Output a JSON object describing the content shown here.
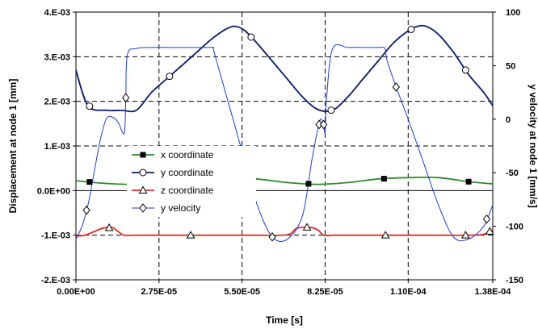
{
  "chart_data": {
    "type": "line",
    "xlabel": "Time [s]",
    "ylabel": "Displacement at node 1 [mm]",
    "y2label": "y velocity at node 1 [mm/s]",
    "xlim": [
      0,
      0.000138
    ],
    "ylim": [
      -0.002,
      0.004
    ],
    "y2lim": [
      -150,
      100
    ],
    "x_ticks": [
      0,
      2.75e-05,
      5.5e-05,
      8.25e-05,
      0.00011,
      0.000138
    ],
    "x_tick_labels": [
      "0.00E+00",
      "2.75E-05",
      "5.50E-05",
      "8.25E-05",
      "1.10E-04",
      "1.38E-04"
    ],
    "y_ticks": [
      -0.002,
      -0.001,
      0,
      0.001,
      0.002,
      0.003,
      0.004
    ],
    "y_tick_labels": [
      "-2.E-03",
      "-1.E-03",
      "0.0E+00",
      "1.E-03",
      "2.E-03",
      "3.E-03",
      "4.E-03"
    ],
    "y2_ticks": [
      -150,
      -100,
      -50,
      0,
      50,
      100
    ],
    "y2_tick_labels": [
      "-150",
      "-100",
      "-50",
      "0",
      "50",
      "100"
    ],
    "grid": "dashed vertical and horizontal at major ticks",
    "legend_position": "center-left",
    "series": [
      {
        "name": "x coordinate",
        "axis": "left",
        "color": "#2e8b2e",
        "marker": "square-filled",
        "x": [
          0,
          1e-05,
          2e-05,
          3e-05,
          4e-05,
          5e-05,
          6e-05,
          7e-05,
          8e-05,
          9e-05,
          0.0001,
          0.00011,
          0.00012,
          0.00013,
          0.000138
        ],
        "y": [
          0.00022,
          0.00016,
          0.00014,
          0.0002,
          0.00028,
          0.0003,
          0.00026,
          0.00018,
          0.00014,
          0.00018,
          0.00026,
          0.00029,
          0.00029,
          0.0002,
          0.00015
        ],
        "markers_x": [
          4.5e-06,
          5.2e-05,
          7.7e-05,
          0.000102,
          0.00013
        ]
      },
      {
        "name": "y coordinate",
        "axis": "left",
        "color": "#0a1a6e",
        "marker": "circle-open",
        "x": [
          0,
          4e-06,
          1e-05,
          1.5e-05,
          2e-05,
          2.5e-05,
          3e-05,
          3.5e-05,
          4e-05,
          4.5e-05,
          5e-05,
          5.3e-05,
          5.6e-05,
          6e-05,
          6.5e-05,
          7e-05,
          7.5e-05,
          8e-05,
          8.5e-05,
          9e-05,
          9.5e-05,
          0.0001,
          0.000105,
          0.00011,
          0.000113,
          0.000116,
          0.00012,
          0.000125,
          0.00013,
          0.000135,
          0.000138
        ],
        "y": [
          0.0027,
          0.0019,
          0.0018,
          0.0018,
          0.0018,
          0.0022,
          0.0025,
          0.0028,
          0.0031,
          0.0034,
          0.00363,
          0.00368,
          0.00358,
          0.0033,
          0.0029,
          0.0025,
          0.0021,
          0.00182,
          0.0018,
          0.0021,
          0.0025,
          0.0029,
          0.0033,
          0.00358,
          0.00368,
          0.00368,
          0.0035,
          0.0031,
          0.0026,
          0.0022,
          0.0019
        ],
        "markers_x": [
          4.5e-06,
          3.1e-05,
          5.8e-05,
          8.45e-05,
          0.000111,
          0.000129
        ]
      },
      {
        "name": "z coordinate",
        "axis": "left",
        "color": "#e32b2b",
        "marker": "triangle-open",
        "x": [
          0,
          3e-06,
          6e-06,
          9e-06,
          1.2e-05,
          1.4e-05,
          1.6e-05,
          2e-05,
          3e-05,
          4e-05,
          5e-05,
          6e-05,
          7e-05,
          7.3e-05,
          7.7e-05,
          8e-05,
          8.2e-05,
          8.5e-05,
          9e-05,
          0.0001,
          0.00011,
          0.00012,
          0.00013,
          0.000135,
          0.000138
        ],
        "y": [
          -0.00102,
          -0.001,
          -0.00092,
          -0.00084,
          -0.00083,
          -0.00092,
          -0.001,
          -0.001,
          -0.001,
          -0.001,
          -0.001,
          -0.001,
          -0.00099,
          -0.00085,
          -0.00082,
          -0.00088,
          -0.001,
          -0.001,
          -0.001,
          -0.001,
          -0.001,
          -0.001,
          -0.001,
          -0.00098,
          -0.00088
        ],
        "markers_x": [
          1.1e-05,
          3.8e-05,
          7.65e-05,
          0.0001025,
          0.000129,
          0.000137
        ]
      },
      {
        "name": "y velocity",
        "axis": "right",
        "color": "#1a3fd6",
        "marker": "diamond-open",
        "x": [
          0,
          2e-06,
          4e-06,
          6e-06,
          8e-06,
          1e-05,
          1.2e-05,
          1.4e-05,
          1.6e-05,
          1.65e-05,
          1.7e-05,
          2e-05,
          2.5e-05,
          3e-05,
          3.5e-05,
          4e-05,
          4.5e-05,
          4.55e-05,
          4.6e-05,
          5e-05,
          5.5e-05,
          6e-05,
          6.5e-05,
          7e-05,
          7.5e-05,
          7.8e-05,
          8e-05,
          8.1e-05,
          8.2e-05,
          8.25e-05,
          8.3e-05,
          8.5e-05,
          9e-05,
          9.5e-05,
          0.0001,
          0.000102,
          0.0001025,
          0.000103,
          0.000106,
          0.00011,
          0.000115,
          0.00012,
          0.000125,
          0.00013,
          0.000135,
          0.000138
        ],
        "y": [
          -112,
          -100,
          -80,
          -50,
          -20,
          0,
          2,
          -3,
          -13,
          20,
          60,
          66,
          67,
          67,
          67,
          67,
          67,
          67,
          60,
          20,
          -30,
          -80,
          -110,
          -112,
          -90,
          -40,
          -10,
          0,
          -5,
          -12,
          20,
          66,
          67,
          67,
          67,
          67,
          64,
          55,
          30,
          0,
          -40,
          -80,
          -110,
          -112,
          -100,
          -80
        ],
        "markers_x": [
          3.5e-06,
          1.65e-05,
          6.5e-05,
          8.05e-05,
          8.2e-05,
          0.000106,
          0.000136
        ]
      }
    ]
  }
}
